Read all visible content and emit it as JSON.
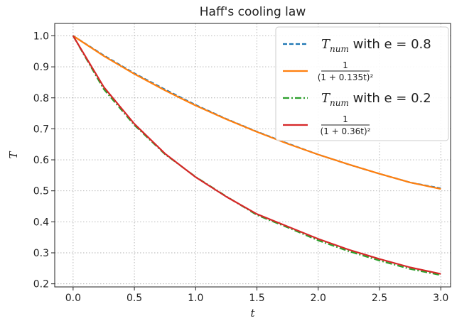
{
  "chart_data": {
    "type": "line",
    "title": "Haff's cooling law",
    "xlabel": "t",
    "ylabel": "T",
    "xlim": [
      -0.15,
      3.08
    ],
    "ylim": [
      0.19,
      1.04
    ],
    "xticks": [
      "0.0",
      "0.5",
      "1.0",
      "1.5",
      "2.0",
      "2.5",
      "3.0"
    ],
    "yticks": [
      "0.2",
      "0.3",
      "0.4",
      "0.5",
      "0.6",
      "0.7",
      "0.8",
      "0.9",
      "1.0"
    ],
    "grid": true,
    "legend_position": "upper-right",
    "series": [
      {
        "legend_main": "T",
        "legend_sub": "num",
        "legend_suffix": " with e = 0.8",
        "style": "dashed",
        "color": "#1f77b4",
        "x": [
          0,
          0.25,
          0.5,
          0.75,
          1.0,
          1.25,
          1.5,
          1.75,
          2.0,
          2.25,
          2.5,
          2.75,
          3.0
        ],
        "y": [
          1.0,
          0.937,
          0.879,
          0.827,
          0.777,
          0.732,
          0.691,
          0.653,
          0.617,
          0.585,
          0.555,
          0.527,
          0.508
        ]
      },
      {
        "legend_num": "1",
        "legend_den": "(1 + 0.135t)²",
        "style": "solid",
        "color": "#ff7f0e",
        "x": [
          0,
          0.25,
          0.5,
          0.75,
          1.0,
          1.25,
          1.5,
          1.75,
          2.0,
          2.25,
          2.5,
          2.75,
          3.0
        ],
        "y": [
          1.0,
          0.935,
          0.877,
          0.824,
          0.775,
          0.731,
          0.69,
          0.652,
          0.617,
          0.585,
          0.555,
          0.527,
          0.506
        ]
      },
      {
        "legend_main": "T",
        "legend_sub": "num",
        "legend_suffix": " with e = 0.2",
        "style": "dashdot",
        "color": "#2ca02c",
        "x": [
          0,
          0.25,
          0.5,
          0.75,
          1.0,
          1.25,
          1.5,
          1.75,
          2.0,
          2.25,
          2.5,
          2.75,
          3.0
        ],
        "y": [
          1.0,
          0.828,
          0.712,
          0.618,
          0.545,
          0.482,
          0.422,
          0.382,
          0.34,
          0.305,
          0.275,
          0.248,
          0.228
        ]
      },
      {
        "legend_num": "1",
        "legend_den": "(1 + 0.36t)²",
        "style": "solid",
        "color": "#d62728",
        "x": [
          0,
          0.25,
          0.5,
          0.75,
          1.0,
          1.25,
          1.5,
          1.75,
          2.0,
          2.25,
          2.5,
          2.75,
          3.0
        ],
        "y": [
          1.0,
          0.835,
          0.716,
          0.62,
          0.544,
          0.481,
          0.425,
          0.385,
          0.345,
          0.31,
          0.28,
          0.253,
          0.232
        ]
      }
    ]
  }
}
